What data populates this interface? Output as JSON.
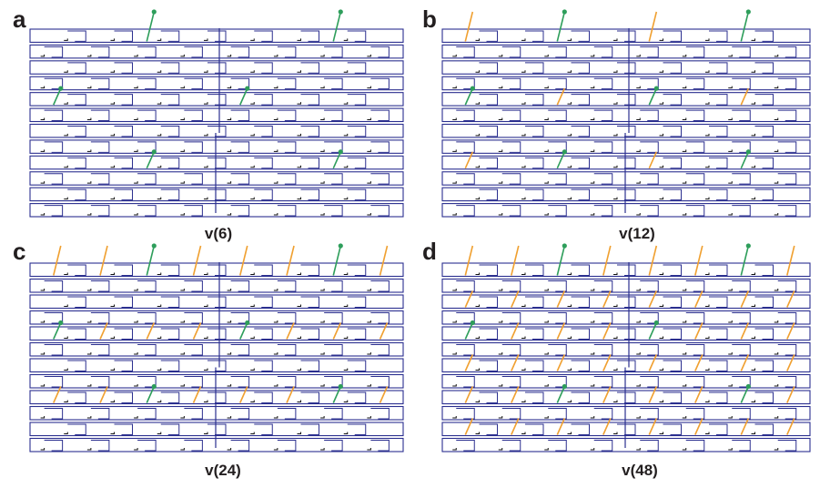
{
  "figure": {
    "panels": [
      {
        "letter": "a",
        "caption": "v(6)",
        "green_markers": 6,
        "orange_markers": 0
      },
      {
        "letter": "b",
        "caption": "v(12)",
        "green_markers": 6,
        "orange_markers": 6
      },
      {
        "letter": "c",
        "caption": "v(24)",
        "green_markers": 6,
        "orange_markers": 18
      },
      {
        "letter": "d",
        "caption": "v(48)",
        "green_markers": 6,
        "orange_markers": 42
      }
    ],
    "colors": {
      "structure": "#2b2f8f",
      "green_marker": "#2e9e5b",
      "orange_marker": "#f0a030",
      "text": "#231f20"
    }
  }
}
